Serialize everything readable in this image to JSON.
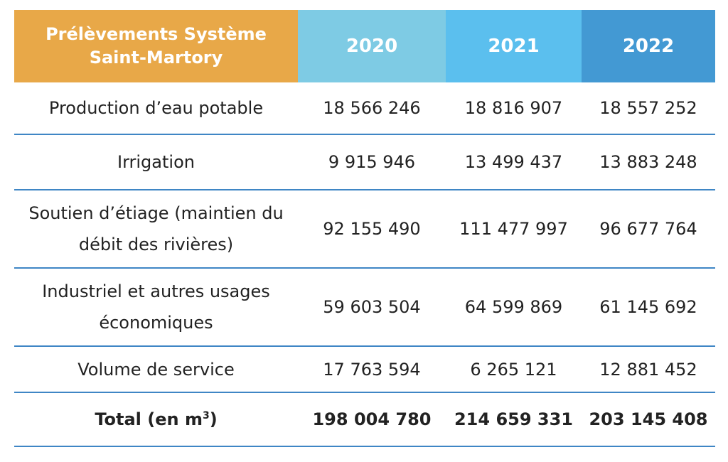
{
  "table": {
    "header": {
      "label": "Prélèvements Système Saint-Martory",
      "years": [
        "2020",
        "2021",
        "2022"
      ]
    },
    "rows": [
      {
        "label": "Production d’eau potable",
        "values": [
          "18 566 246",
          "18 816 907",
          "18 557 252"
        ]
      },
      {
        "label": "Irrigation",
        "values": [
          "9 915 946",
          "13 499 437",
          "13 883 248"
        ]
      },
      {
        "label": "Soutien d’étiage (maintien du débit des rivières)",
        "values": [
          "92 155 490",
          "111 477 997",
          "96 677 764"
        ]
      },
      {
        "label": "Industriel et autres usages économiques",
        "values": [
          "59 603 504",
          "64 599 869",
          "61 145 692"
        ]
      },
      {
        "label": "Volume de service",
        "values": [
          "17 763 594",
          "6 265 121",
          "12 881 452"
        ]
      }
    ],
    "total": {
      "label": "Total (en m",
      "label_sup": "3",
      "label_end": ")",
      "values": [
        "198 004 780",
        "214 659 331",
        "203 145 408"
      ]
    }
  },
  "colors": {
    "header_label_bg": "#e8a848",
    "header_2020_bg": "#7ecbe4",
    "header_2021_bg": "#5bbfee",
    "header_2022_bg": "#4399d3",
    "row_divider": "#3f86c5"
  }
}
